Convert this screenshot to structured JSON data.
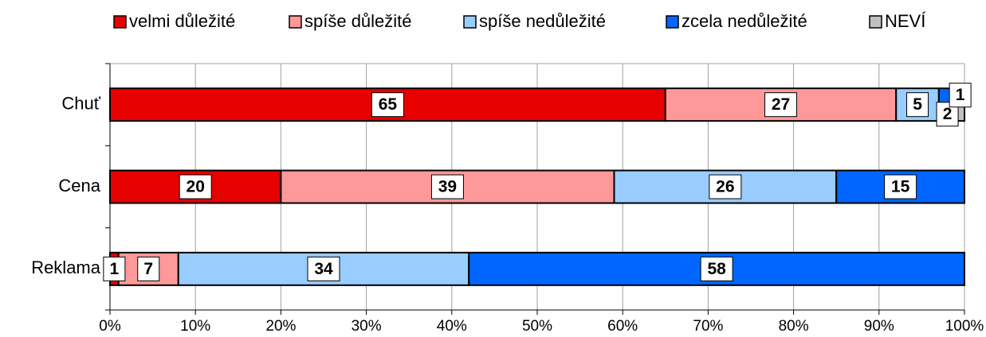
{
  "chart_data": {
    "type": "bar",
    "orientation": "horizontal",
    "stacked": true,
    "categories": [
      "Chuť",
      "Cena",
      "Reklama"
    ],
    "series": [
      {
        "name": "velmi důležité",
        "color": "#e60000",
        "values": [
          65,
          20,
          1
        ]
      },
      {
        "name": "spíše důležité",
        "color": "#ff9999",
        "values": [
          27,
          39,
          7
        ]
      },
      {
        "name": "spíše nedůležité",
        "color": "#99ccff",
        "values": [
          5,
          26,
          34
        ]
      },
      {
        "name": "zcela nedůležité",
        "color": "#0066ff",
        "values": [
          2,
          15,
          58
        ]
      },
      {
        "name": "NEVÍ",
        "color": "#c0c0c0",
        "values": [
          1,
          null,
          null
        ]
      }
    ],
    "xlim": [
      0,
      100
    ],
    "xticks": [
      {
        "value": 0,
        "label": "0%"
      },
      {
        "value": 10,
        "label": "10%"
      },
      {
        "value": 20,
        "label": "20%"
      },
      {
        "value": 30,
        "label": "30%"
      },
      {
        "value": 40,
        "label": "40%"
      },
      {
        "value": 50,
        "label": "50%"
      },
      {
        "value": 60,
        "label": "60%"
      },
      {
        "value": 70,
        "label": "70%"
      },
      {
        "value": 80,
        "label": "80%"
      },
      {
        "value": 90,
        "label": "90%"
      },
      {
        "value": 100,
        "label": "100%"
      }
    ],
    "grid": true,
    "legend": "top"
  }
}
